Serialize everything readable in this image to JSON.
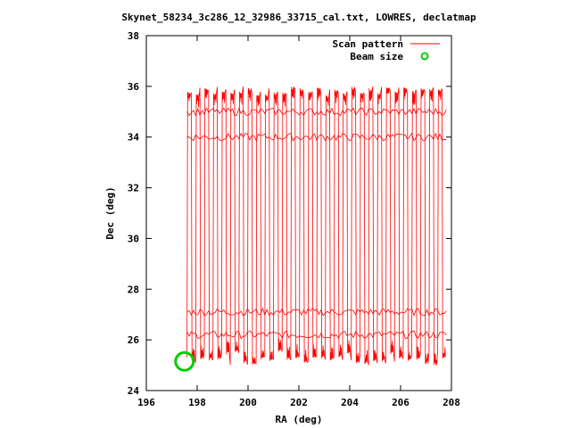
{
  "chart_data": {
    "type": "line",
    "title": "Skynet_58234_3c286_12_32986_33715_cal.txt, LOWRES, declatmap",
    "xlabel": "RA (deg)",
    "ylabel": "Dec (deg)",
    "xlim": [
      196,
      208
    ],
    "ylim": [
      24,
      38
    ],
    "xticks": [
      196,
      198,
      200,
      202,
      204,
      206,
      208
    ],
    "yticks": [
      24,
      26,
      28,
      30,
      32,
      34,
      36,
      38
    ],
    "legend_position": "top-right",
    "series": [
      {
        "name": "Scan pattern",
        "kind": "line",
        "color": "#ff0000",
        "ra_range": [
          197.6,
          207.8
        ],
        "dec_range": [
          25.0,
          36.0
        ],
        "num_legs": 60,
        "turnaround_dec": [
          26.2,
          27.1,
          34.0,
          35.0
        ]
      },
      {
        "name": "Beam size",
        "kind": "circle",
        "color": "#00cc00",
        "center": [
          197.5,
          25.15
        ],
        "radius_deg": 0.35
      }
    ]
  }
}
